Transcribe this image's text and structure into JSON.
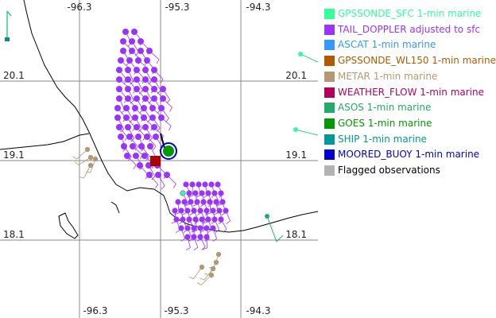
{
  "map": {
    "lon_labels_top": [
      "-96.3",
      "-95.3",
      "-94.3"
    ],
    "lon_labels_bottom": [
      "-96.3",
      "-95.3",
      "-94.3"
    ],
    "lat_labels_left": [
      "20.1",
      "19.1",
      "18.1"
    ],
    "lat_labels_right": [
      "20.1",
      "19.1",
      "18.1"
    ],
    "colors": {
      "grid": "#8a8a8a",
      "coast": "#000000",
      "tail_doppler": "#9933ff",
      "metar": "#b39973",
      "gpssonde_sfc": "#33ff99",
      "moored_buoy": "#0000cc",
      "goes": "#009900",
      "storm_center": "#aa0000"
    }
  },
  "legend": {
    "items": [
      {
        "label": "GPSSONDE_SFC 1-min marine",
        "color": "#33ff99"
      },
      {
        "label": "TAIL_DOPPLER adjusted to sfc",
        "color": "#9933ff"
      },
      {
        "label": "ASCAT 1-min marine",
        "color": "#3399ff"
      },
      {
        "label": "GPSSONDE_WL150 1-min marine",
        "color": "#b35900"
      },
      {
        "label": "METAR 1-min marine",
        "color": "#b39973"
      },
      {
        "label": "WEATHER_FLOW 1-min marine",
        "color": "#b3005f"
      },
      {
        "label": "ASOS 1-min marine",
        "color": "#22aa66"
      },
      {
        "label": "GOES 1-min marine",
        "color": "#009900"
      },
      {
        "label": "SHIP 1-min marine",
        "color": "#009999"
      },
      {
        "label": "MOORED_BUOY 1-min marine",
        "color": "#0000cc"
      },
      {
        "label": "Flagged observations",
        "color": "#b3b3b3"
      }
    ]
  }
}
